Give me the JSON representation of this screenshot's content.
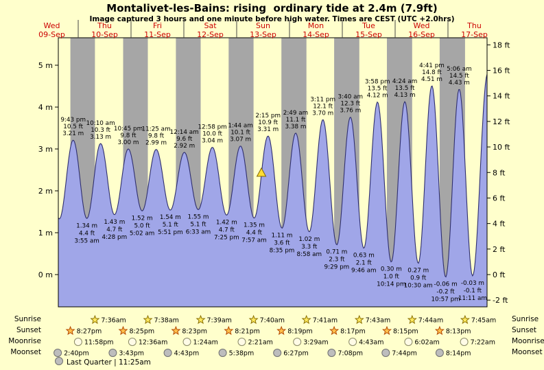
{
  "header": {
    "title": "Montalivet-les-Bains: rising  ordinary tide at 2.4m (7.9ft)",
    "subtitle": "Image captured 3 hours and one minute before high water. Times are CEST (UTC +2.0hrs)"
  },
  "colors": {
    "background": "#ffffcc",
    "day_band": "#ffffcc",
    "night_band": "#a6a6a6",
    "tide_fill": "#a0a6e8",
    "tide_stroke": "#2e2e6e",
    "date_red": "#cc0000",
    "marker_fill": "#ffdd33",
    "marker_stroke": "#806600",
    "separator": "#444444"
  },
  "chart_data": {
    "type": "area",
    "title": "Montalivet-les-Bains: rising ordinary tide at 2.4m (7.9ft)",
    "ylabel_left": "m",
    "ylabel_right": "ft",
    "ylim_m": [
      -0.77,
      5.66
    ],
    "grid": false,
    "days": [
      {
        "dow": "Wed",
        "date": "09-Sep"
      },
      {
        "dow": "Thu",
        "date": "10-Sep"
      },
      {
        "dow": "Fri",
        "date": "11-Sep"
      },
      {
        "dow": "Sat",
        "date": "12-Sep"
      },
      {
        "dow": "Sun",
        "date": "13-Sep"
      },
      {
        "dow": "Mon",
        "date": "14-Sep"
      },
      {
        "dow": "Tue",
        "date": "15-Sep"
      },
      {
        "dow": "Wed",
        "date": "16-Sep"
      },
      {
        "dow": "Thu",
        "date": "17-Sep"
      }
    ],
    "y_axis_left": {
      "unit": "m",
      "ticks": [
        {
          "value": 0,
          "label": "0 m"
        },
        {
          "value": 1,
          "label": "1 m"
        },
        {
          "value": 2,
          "label": "2 m"
        },
        {
          "value": 3,
          "label": "3 m"
        },
        {
          "value": 4,
          "label": "4 m"
        },
        {
          "value": 5,
          "label": "5 m"
        }
      ]
    },
    "y_axis_right": {
      "unit": "ft",
      "ticks": [
        {
          "value": -2,
          "label": "-2 ft"
        },
        {
          "value": 0,
          "label": "0 ft"
        },
        {
          "value": 2,
          "label": "2 ft"
        },
        {
          "value": 4,
          "label": "4 ft"
        },
        {
          "value": 6,
          "label": "6 ft"
        },
        {
          "value": 8,
          "label": "8 ft"
        },
        {
          "value": 10,
          "label": "10 ft"
        },
        {
          "value": 12,
          "label": "12 ft"
        },
        {
          "value": 14,
          "label": "14 ft"
        },
        {
          "value": 16,
          "label": "16 ft"
        },
        {
          "value": 18,
          "label": "18 ft"
        }
      ]
    },
    "extremes": [
      {
        "type": "high",
        "d": 0,
        "time": "9:43 pm",
        "ft": "10.5 ft",
        "m": "3.21 m",
        "height_m": 3.21
      },
      {
        "type": "low",
        "d": 1,
        "time": "3:55 am",
        "ft": "4.4 ft",
        "m": "1.34 m",
        "height_m": 1.34
      },
      {
        "type": "high",
        "d": 1,
        "time": "10:10 am",
        "ft": "10.3 ft",
        "m": "3.13 m",
        "height_m": 3.13
      },
      {
        "type": "low",
        "d": 1,
        "time": "4:28 pm",
        "ft": "4.7 ft",
        "m": "1.43 m",
        "height_m": 1.43
      },
      {
        "type": "high",
        "d": 1,
        "time": "10:45 pm",
        "ft": "9.8 ft",
        "m": "3.00 m",
        "height_m": 3.0
      },
      {
        "type": "low",
        "d": 2,
        "time": "5:02 am",
        "ft": "5.0 ft",
        "m": "1.52 m",
        "height_m": 1.52
      },
      {
        "type": "high",
        "d": 2,
        "time": "11:25 am",
        "ft": "9.8 ft",
        "m": "2.99 m",
        "height_m": 2.99
      },
      {
        "type": "low",
        "d": 2,
        "time": "5:51 pm",
        "ft": "5.1 ft",
        "m": "1.54 m",
        "height_m": 1.54
      },
      {
        "type": "high",
        "d": 3,
        "time": "12:14 am",
        "ft": "9.6 ft",
        "m": "2.92 m",
        "height_m": 2.92
      },
      {
        "type": "low",
        "d": 3,
        "time": "6:33 am",
        "ft": "5.1 ft",
        "m": "1.55 m",
        "height_m": 1.55
      },
      {
        "type": "high",
        "d": 3,
        "time": "12:58 pm",
        "ft": "10.0 ft",
        "m": "3.04 m",
        "height_m": 3.04
      },
      {
        "type": "low",
        "d": 3,
        "time": "7:25 pm",
        "ft": "4.7 ft",
        "m": "1.42 m",
        "height_m": 1.42
      },
      {
        "type": "high",
        "d": 4,
        "time": "1:44 am",
        "ft": "10.1 ft",
        "m": "3.07 m",
        "height_m": 3.07
      },
      {
        "type": "low",
        "d": 4,
        "time": "7:57 am",
        "ft": "4.4 ft",
        "m": "1.35 m",
        "height_m": 1.35
      },
      {
        "type": "high",
        "d": 4,
        "time": "2:15 pm",
        "ft": "10.9 ft",
        "m": "3.31 m",
        "height_m": 3.31
      },
      {
        "type": "low",
        "d": 4,
        "time": "8:35 pm",
        "ft": "3.6 ft",
        "m": "1.11 m",
        "height_m": 1.11
      },
      {
        "type": "high",
        "d": 5,
        "time": "2:49 am",
        "ft": "11.1 ft",
        "m": "3.38 m",
        "height_m": 3.38
      },
      {
        "type": "low",
        "d": 5,
        "time": "8:58 am",
        "ft": "3.3 ft",
        "m": "1.02 m",
        "height_m": 1.02
      },
      {
        "type": "high",
        "d": 5,
        "time": "3:11 pm",
        "ft": "12.1 ft",
        "m": "3.70 m",
        "height_m": 3.7
      },
      {
        "type": "low",
        "d": 5,
        "time": "9:29 pm",
        "ft": "2.3 ft",
        "m": "0.71 m",
        "height_m": 0.71
      },
      {
        "type": "high",
        "d": 6,
        "time": "3:40 am",
        "ft": "12.3 ft",
        "m": "3.76 m",
        "height_m": 3.76
      },
      {
        "type": "low",
        "d": 6,
        "time": "9:46 am",
        "ft": "2.1 ft",
        "m": "0.63 m",
        "height_m": 0.63
      },
      {
        "type": "high",
        "d": 6,
        "time": "3:58 pm",
        "ft": "13.5 ft",
        "m": "4.12 m",
        "height_m": 4.12
      },
      {
        "type": "low",
        "d": 6,
        "time": "10:14 pm",
        "ft": "1.0 ft",
        "m": "0.30 m",
        "height_m": 0.3
      },
      {
        "type": "high",
        "d": 7,
        "time": "4:24 am",
        "ft": "13.5 ft",
        "m": "4.13 m",
        "height_m": 4.13
      },
      {
        "type": "low",
        "d": 7,
        "time": "10:30 am",
        "ft": "0.9 ft",
        "m": "0.27 m",
        "height_m": 0.27
      },
      {
        "type": "high",
        "d": 7,
        "time": "4:41 pm",
        "ft": "14.8 ft",
        "m": "4.51 m",
        "height_m": 4.51
      },
      {
        "type": "low",
        "d": 7,
        "time": "10:57 pm",
        "ft": "-0.2 ft",
        "m": "-0.06 m",
        "height_m": -0.06
      },
      {
        "type": "high",
        "d": 8,
        "time": "5:06 am",
        "ft": "14.5 ft",
        "m": "4.43 m",
        "height_m": 4.43
      },
      {
        "type": "low",
        "d": 8,
        "time": "11:11 am",
        "ft": "-0.1 ft",
        "m": "-0.03 m",
        "height_m": -0.03
      }
    ],
    "marker": {
      "d": 4,
      "time": "11:14 am",
      "shape": "triangle"
    }
  },
  "astro": {
    "rows": [
      {
        "label": "Sunrise",
        "icon": "sunrise-star",
        "icon_fill": "#ffe95e",
        "icon_stroke": "#8a7000",
        "events": [
          {
            "d": 1,
            "time": "7:36am"
          },
          {
            "d": 2,
            "time": "7:38am"
          },
          {
            "d": 3,
            "time": "7:39am"
          },
          {
            "d": 4,
            "time": "7:40am"
          },
          {
            "d": 5,
            "time": "7:41am"
          },
          {
            "d": 6,
            "time": "7:43am"
          },
          {
            "d": 7,
            "time": "7:44am"
          },
          {
            "d": 8,
            "time": "7:45am"
          }
        ]
      },
      {
        "label": "Sunset",
        "icon": "sunset-star",
        "icon_fill": "#ffc04d",
        "icon_stroke": "#b34700",
        "events": [
          {
            "d": 0,
            "time": "8:27pm"
          },
          {
            "d": 1,
            "time": "8:25pm"
          },
          {
            "d": 2,
            "time": "8:23pm"
          },
          {
            "d": 3,
            "time": "8:21pm"
          },
          {
            "d": 4,
            "time": "8:19pm"
          },
          {
            "d": 5,
            "time": "8:17pm"
          },
          {
            "d": 6,
            "time": "8:15pm"
          },
          {
            "d": 7,
            "time": "8:13pm"
          }
        ]
      },
      {
        "label": "Moonrise",
        "icon": "moonrise-circle",
        "icon_fill": "#fffbe6",
        "icon_stroke": "#8a8a66",
        "events": [
          {
            "d": 0,
            "time": "11:58pm"
          },
          {
            "d": 2,
            "time": "12:36am"
          },
          {
            "d": 3,
            "time": "1:24am"
          },
          {
            "d": 4,
            "time": "2:21am"
          },
          {
            "d": 5,
            "time": "3:29am"
          },
          {
            "d": 6,
            "time": "4:43am"
          },
          {
            "d": 7,
            "time": "6:02am"
          },
          {
            "d": 8,
            "time": "7:22am"
          }
        ]
      },
      {
        "label": "Moonset",
        "icon": "moonset-circle",
        "icon_fill": "#bdbdbd",
        "icon_stroke": "#707070",
        "events": [
          {
            "d": 0,
            "time": "2:40pm"
          },
          {
            "d": 1,
            "time": "3:43pm"
          },
          {
            "d": 2,
            "time": "4:43pm"
          },
          {
            "d": 3,
            "time": "5:38pm"
          },
          {
            "d": 4,
            "time": "6:27pm"
          },
          {
            "d": 5,
            "time": "7:08pm"
          },
          {
            "d": 6,
            "time": "7:44pm"
          },
          {
            "d": 7,
            "time": "8:14pm"
          }
        ]
      }
    ],
    "footnote": "Last Quarter | 11:25am"
  }
}
